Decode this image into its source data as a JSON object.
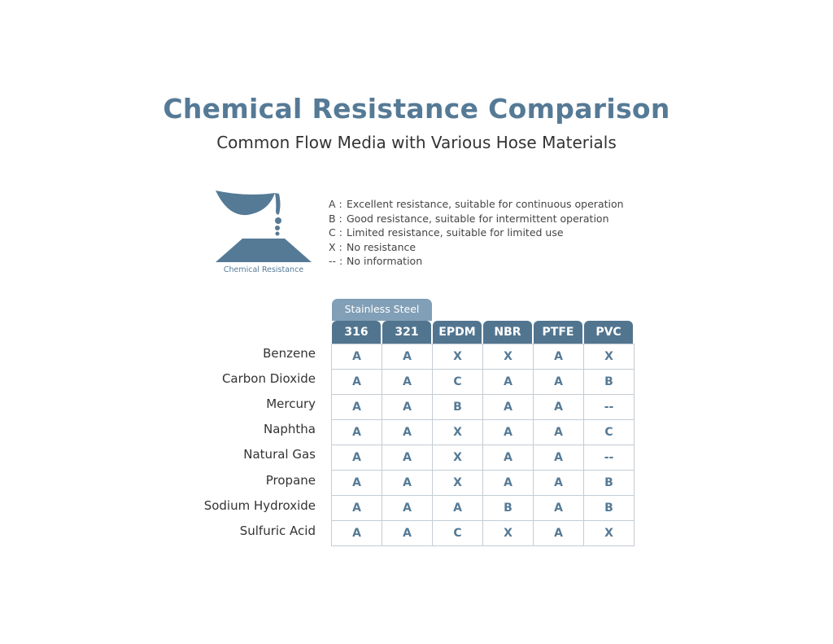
{
  "header": {
    "title": "Chemical Resistance Comparison",
    "subtitle": "Common Flow Media with Various Hose Materials"
  },
  "icon": {
    "name": "chemical-resistance-icon",
    "label": "Chemical Resistance",
    "color": "#557a96"
  },
  "legend": [
    {
      "key": "A :",
      "text": "Excellent resistance, suitable for continuous operation"
    },
    {
      "key": "B :",
      "text": "Good resistance, suitable for intermittent operation"
    },
    {
      "key": "C :",
      "text": "Limited resistance, suitable for limited use"
    },
    {
      "key": "X :",
      "text": "No resistance"
    },
    {
      "key": "-- :",
      "text": "No information"
    }
  ],
  "table": {
    "group_header": "Stainless Steel",
    "columns": [
      "316",
      "321",
      "EPDM",
      "NBR",
      "PTFE",
      "PVC"
    ],
    "rows": [
      {
        "label": "Benzene",
        "values": [
          "A",
          "A",
          "X",
          "X",
          "A",
          "X"
        ]
      },
      {
        "label": "Carbon Dioxide",
        "values": [
          "A",
          "A",
          "C",
          "A",
          "A",
          "B"
        ]
      },
      {
        "label": "Mercury",
        "values": [
          "A",
          "A",
          "B",
          "A",
          "A",
          "--"
        ]
      },
      {
        "label": "Naphtha",
        "values": [
          "A",
          "A",
          "X",
          "A",
          "A",
          "C"
        ]
      },
      {
        "label": "Natural Gas",
        "values": [
          "A",
          "A",
          "X",
          "A",
          "A",
          "--"
        ]
      },
      {
        "label": "Propane",
        "values": [
          "A",
          "A",
          "X",
          "A",
          "A",
          "B"
        ]
      },
      {
        "label": "Sodium Hydroxide",
        "values": [
          "A",
          "A",
          "A",
          "B",
          "A",
          "B"
        ]
      },
      {
        "label": "Sulfuric Acid",
        "values": [
          "A",
          "A",
          "C",
          "X",
          "A",
          "X"
        ]
      }
    ]
  },
  "colors": {
    "header": "#52758f",
    "group_header": "#819fb6",
    "title": "#557a96"
  }
}
